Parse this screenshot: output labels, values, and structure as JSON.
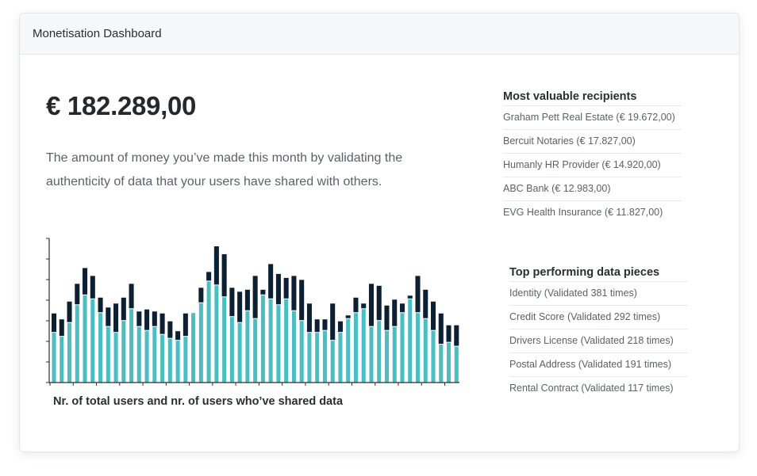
{
  "header": {
    "title": "Monetisation Dashboard"
  },
  "summary": {
    "amount": "€ 182.289,00",
    "description": "The amount of money you’ve made this month by validating the authenticity of data that your users have shared with others."
  },
  "recipients": {
    "title": "Most valuable recipients",
    "items": [
      "Graham Pett Real Estate (€ 19.672,00)",
      "Bercuit Notaries (€ 17.827,00)",
      "Humanly HR Provider (€ 14.920,00)",
      "ABC Bank (€ 12.983,00)",
      "EVG Health Insurance (€ 11.827,00)"
    ]
  },
  "data_pieces": {
    "title": "Top performing data pieces",
    "items": [
      "Identity (Validated 381 times)",
      "Credit Score (Validated 292 times)",
      "Drivers License (Validated 218 times)",
      "Postal Address (Validated 191 times)",
      "Rental Contract (Validated 117 times)"
    ]
  },
  "colors": {
    "total_users": "#0d2033",
    "shared_users": "#4bbec4",
    "axis": "#2a2e33"
  },
  "chart_data": {
    "type": "bar",
    "title": "Nr. of total users and nr. of users who’ve shared data",
    "ylim": [
      0,
      7.3
    ],
    "series": [
      {
        "name": "",
        "role": "total",
        "values": [
          3.5,
          3.2,
          4.1,
          5.0,
          5.8,
          5.4,
          4.3,
          3.8,
          4.0,
          4.3,
          5.0,
          3.6,
          3.7,
          3.6,
          3.5,
          3.1,
          2.6,
          3.5,
          3.3,
          4.8,
          5.6,
          6.9,
          6.5,
          4.8,
          4.6,
          4.7,
          5.4,
          4.7,
          6.0,
          5.5,
          5.3,
          5.4,
          5.2,
          4.0,
          3.2,
          3.2,
          4.0,
          3.1,
          3.4,
          4.3,
          4.0,
          5.0,
          4.9,
          3.9,
          4.2,
          4.0,
          4.4,
          5.4,
          4.7,
          4.1,
          3.5,
          2.9,
          2.9
        ],
        "color_key": "total_users"
      },
      {
        "name": "",
        "role": "shared",
        "values": [
          2.6,
          2.4,
          3.1,
          4.0,
          4.5,
          4.3,
          3.6,
          2.9,
          2.6,
          3.2,
          3.8,
          2.9,
          2.7,
          2.9,
          2.5,
          2.3,
          2.2,
          2.4,
          3.6,
          4.1,
          5.2,
          5.0,
          4.4,
          3.4,
          3.1,
          3.7,
          3.3,
          4.5,
          4.3,
          4.0,
          4.3,
          3.7,
          3.2,
          2.6,
          2.6,
          2.7,
          2.2,
          2.6,
          3.3,
          3.6,
          3.8,
          2.9,
          3.2,
          2.7,
          2.9,
          3.6,
          4.3,
          3.6,
          3.3,
          2.7,
          2.0,
          2.1,
          1.9
        ],
        "color_key": "shared_users"
      }
    ]
  }
}
